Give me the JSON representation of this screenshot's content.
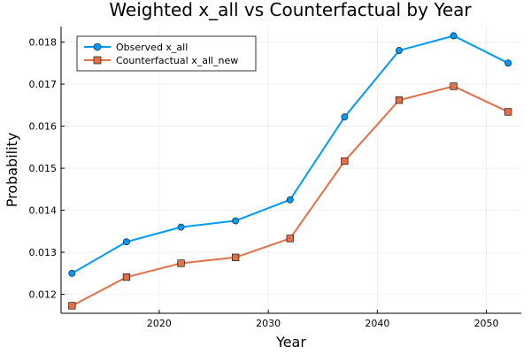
{
  "chart_data": {
    "type": "line",
    "title": "Weighted x_all vs Counterfactual by Year",
    "xlabel": "Year",
    "ylabel": "Probability",
    "x": [
      2012,
      2017,
      2022,
      2027,
      2032,
      2037,
      2042,
      2047,
      2052
    ],
    "xlim": [
      2011.0,
      2053.2
    ],
    "ylim": [
      0.01155,
      0.01837
    ],
    "xticks": [
      2020,
      2030,
      2040,
      2050
    ],
    "xtick_labels": [
      "2020",
      "2030",
      "2040",
      "2050"
    ],
    "yticks": [
      0.012,
      0.013,
      0.014,
      0.015,
      0.016,
      0.017,
      0.018
    ],
    "ytick_labels": [
      "0.012",
      "0.013",
      "0.014",
      "0.015",
      "0.016",
      "0.017",
      "0.018"
    ],
    "grid": true,
    "legend_position": "top-left",
    "series": [
      {
        "name": "Observed x_all",
        "color": "#009AF9",
        "marker": "circle",
        "values": [
          0.0125,
          0.01325,
          0.0136,
          0.01375,
          0.01425,
          0.01622,
          0.0178,
          0.01815,
          0.0175
        ]
      },
      {
        "name": "Counterfactual x_all_new",
        "color": "#E26F46",
        "marker": "square",
        "values": [
          0.01173,
          0.01241,
          0.01274,
          0.01288,
          0.01333,
          0.01517,
          0.01662,
          0.01695,
          0.01634
        ]
      }
    ]
  }
}
